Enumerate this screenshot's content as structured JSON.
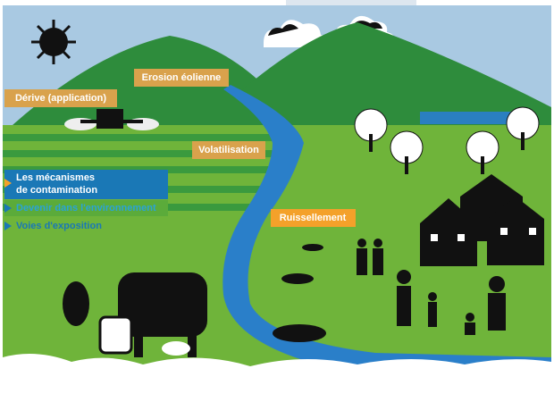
{
  "labels": {
    "wind_erosion": "Erosion éolienne",
    "drift": "Dérive (application)",
    "volatilisation": "Volatilisation",
    "runoff": "Ruissellement"
  },
  "menu": {
    "items": [
      {
        "lines": [
          "Les mécanismes",
          "de contamination"
        ]
      },
      {
        "lines": [
          "Devenir dans l'environnement"
        ]
      },
      {
        "lines": [
          "Voies d'exposition"
        ]
      }
    ]
  }
}
